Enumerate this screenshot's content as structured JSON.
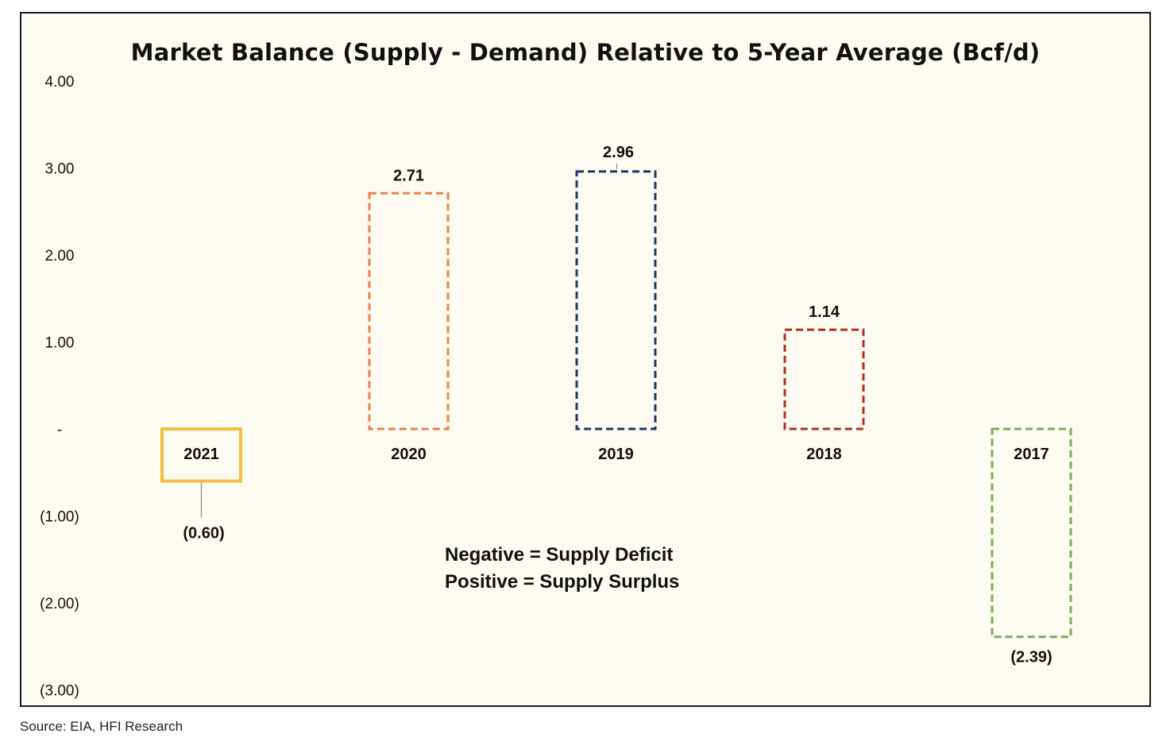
{
  "chart_data": {
    "type": "bar",
    "title": "Market Balance (Supply - Demand) Relative to 5-Year Average (Bcf/d)",
    "categories": [
      "2021",
      "2020",
      "2019",
      "2018",
      "2017"
    ],
    "values": [
      -0.6,
      2.71,
      2.96,
      1.14,
      -2.39
    ],
    "value_labels": [
      "(0.60)",
      "2.71",
      "2.96",
      "1.14",
      "(2.39)"
    ],
    "bar_colors": [
      "#f0c040",
      "#e8834a",
      "#1f3864",
      "#b03020",
      "#7aad55"
    ],
    "bar_styles": [
      "solid",
      "dashed",
      "dashed",
      "dashed",
      "dashed"
    ],
    "ylim": [
      -3,
      4
    ],
    "yticks": [
      4,
      3,
      2,
      1,
      0,
      -1,
      -2,
      -3
    ],
    "ytick_labels": [
      "4.00",
      "3.00",
      "2.00",
      "1.00",
      "-",
      "(1.00)",
      "(2.00)",
      "(3.00)"
    ],
    "annotation_lines": [
      "Negative = Supply Deficit",
      "Positive = Supply Surplus"
    ],
    "grid": false,
    "legend": "none"
  },
  "source": "Source: EIA, HFI Research"
}
